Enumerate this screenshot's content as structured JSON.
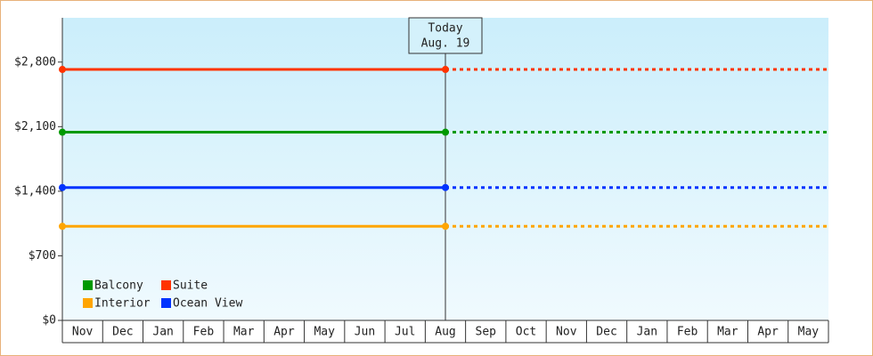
{
  "chart_data": {
    "type": "line",
    "categories": [
      "Nov",
      "Dec",
      "Jan",
      "Feb",
      "Mar",
      "Apr",
      "May",
      "Jun",
      "Jul",
      "Aug",
      "Sep",
      "Oct",
      "Nov",
      "Dec",
      "Jan",
      "Feb",
      "Mar",
      "Apr",
      "May"
    ],
    "series": [
      {
        "name": "Balcony",
        "color": "#009900",
        "values": [
          2040,
          2040,
          2040,
          2040,
          2040,
          2040,
          2040,
          2040,
          2040,
          2040,
          2040,
          2040,
          2040,
          2040,
          2040,
          2040,
          2040,
          2040,
          2040
        ]
      },
      {
        "name": "Suite",
        "color": "#ff3300",
        "values": [
          2720,
          2720,
          2720,
          2720,
          2720,
          2720,
          2720,
          2720,
          2720,
          2720,
          2720,
          2720,
          2720,
          2720,
          2720,
          2720,
          2720,
          2720,
          2720
        ]
      },
      {
        "name": "Interior",
        "color": "#ffa500",
        "values": [
          1020,
          1020,
          1020,
          1020,
          1020,
          1020,
          1020,
          1020,
          1020,
          1020,
          1020,
          1020,
          1020,
          1020,
          1020,
          1020,
          1020,
          1020,
          1020
        ]
      },
      {
        "name": "Ocean View",
        "color": "#0033ff",
        "values": [
          1440,
          1440,
          1440,
          1440,
          1440,
          1440,
          1440,
          1440,
          1440,
          1440,
          1440,
          1440,
          1440,
          1440,
          1440,
          1440,
          1440,
          1440,
          1440
        ]
      }
    ],
    "annotation": {
      "title": "Today",
      "label": "Aug. 19",
      "category": "Aug"
    },
    "ylim": [
      0,
      3280
    ],
    "yticks": [
      {
        "value": 0,
        "label": "$0"
      },
      {
        "value": 700,
        "label": "$700"
      },
      {
        "value": 1400,
        "label": "$1,400"
      },
      {
        "value": 2100,
        "label": "$2,100"
      },
      {
        "value": 2800,
        "label": "$2,800"
      }
    ],
    "grid": false
  }
}
